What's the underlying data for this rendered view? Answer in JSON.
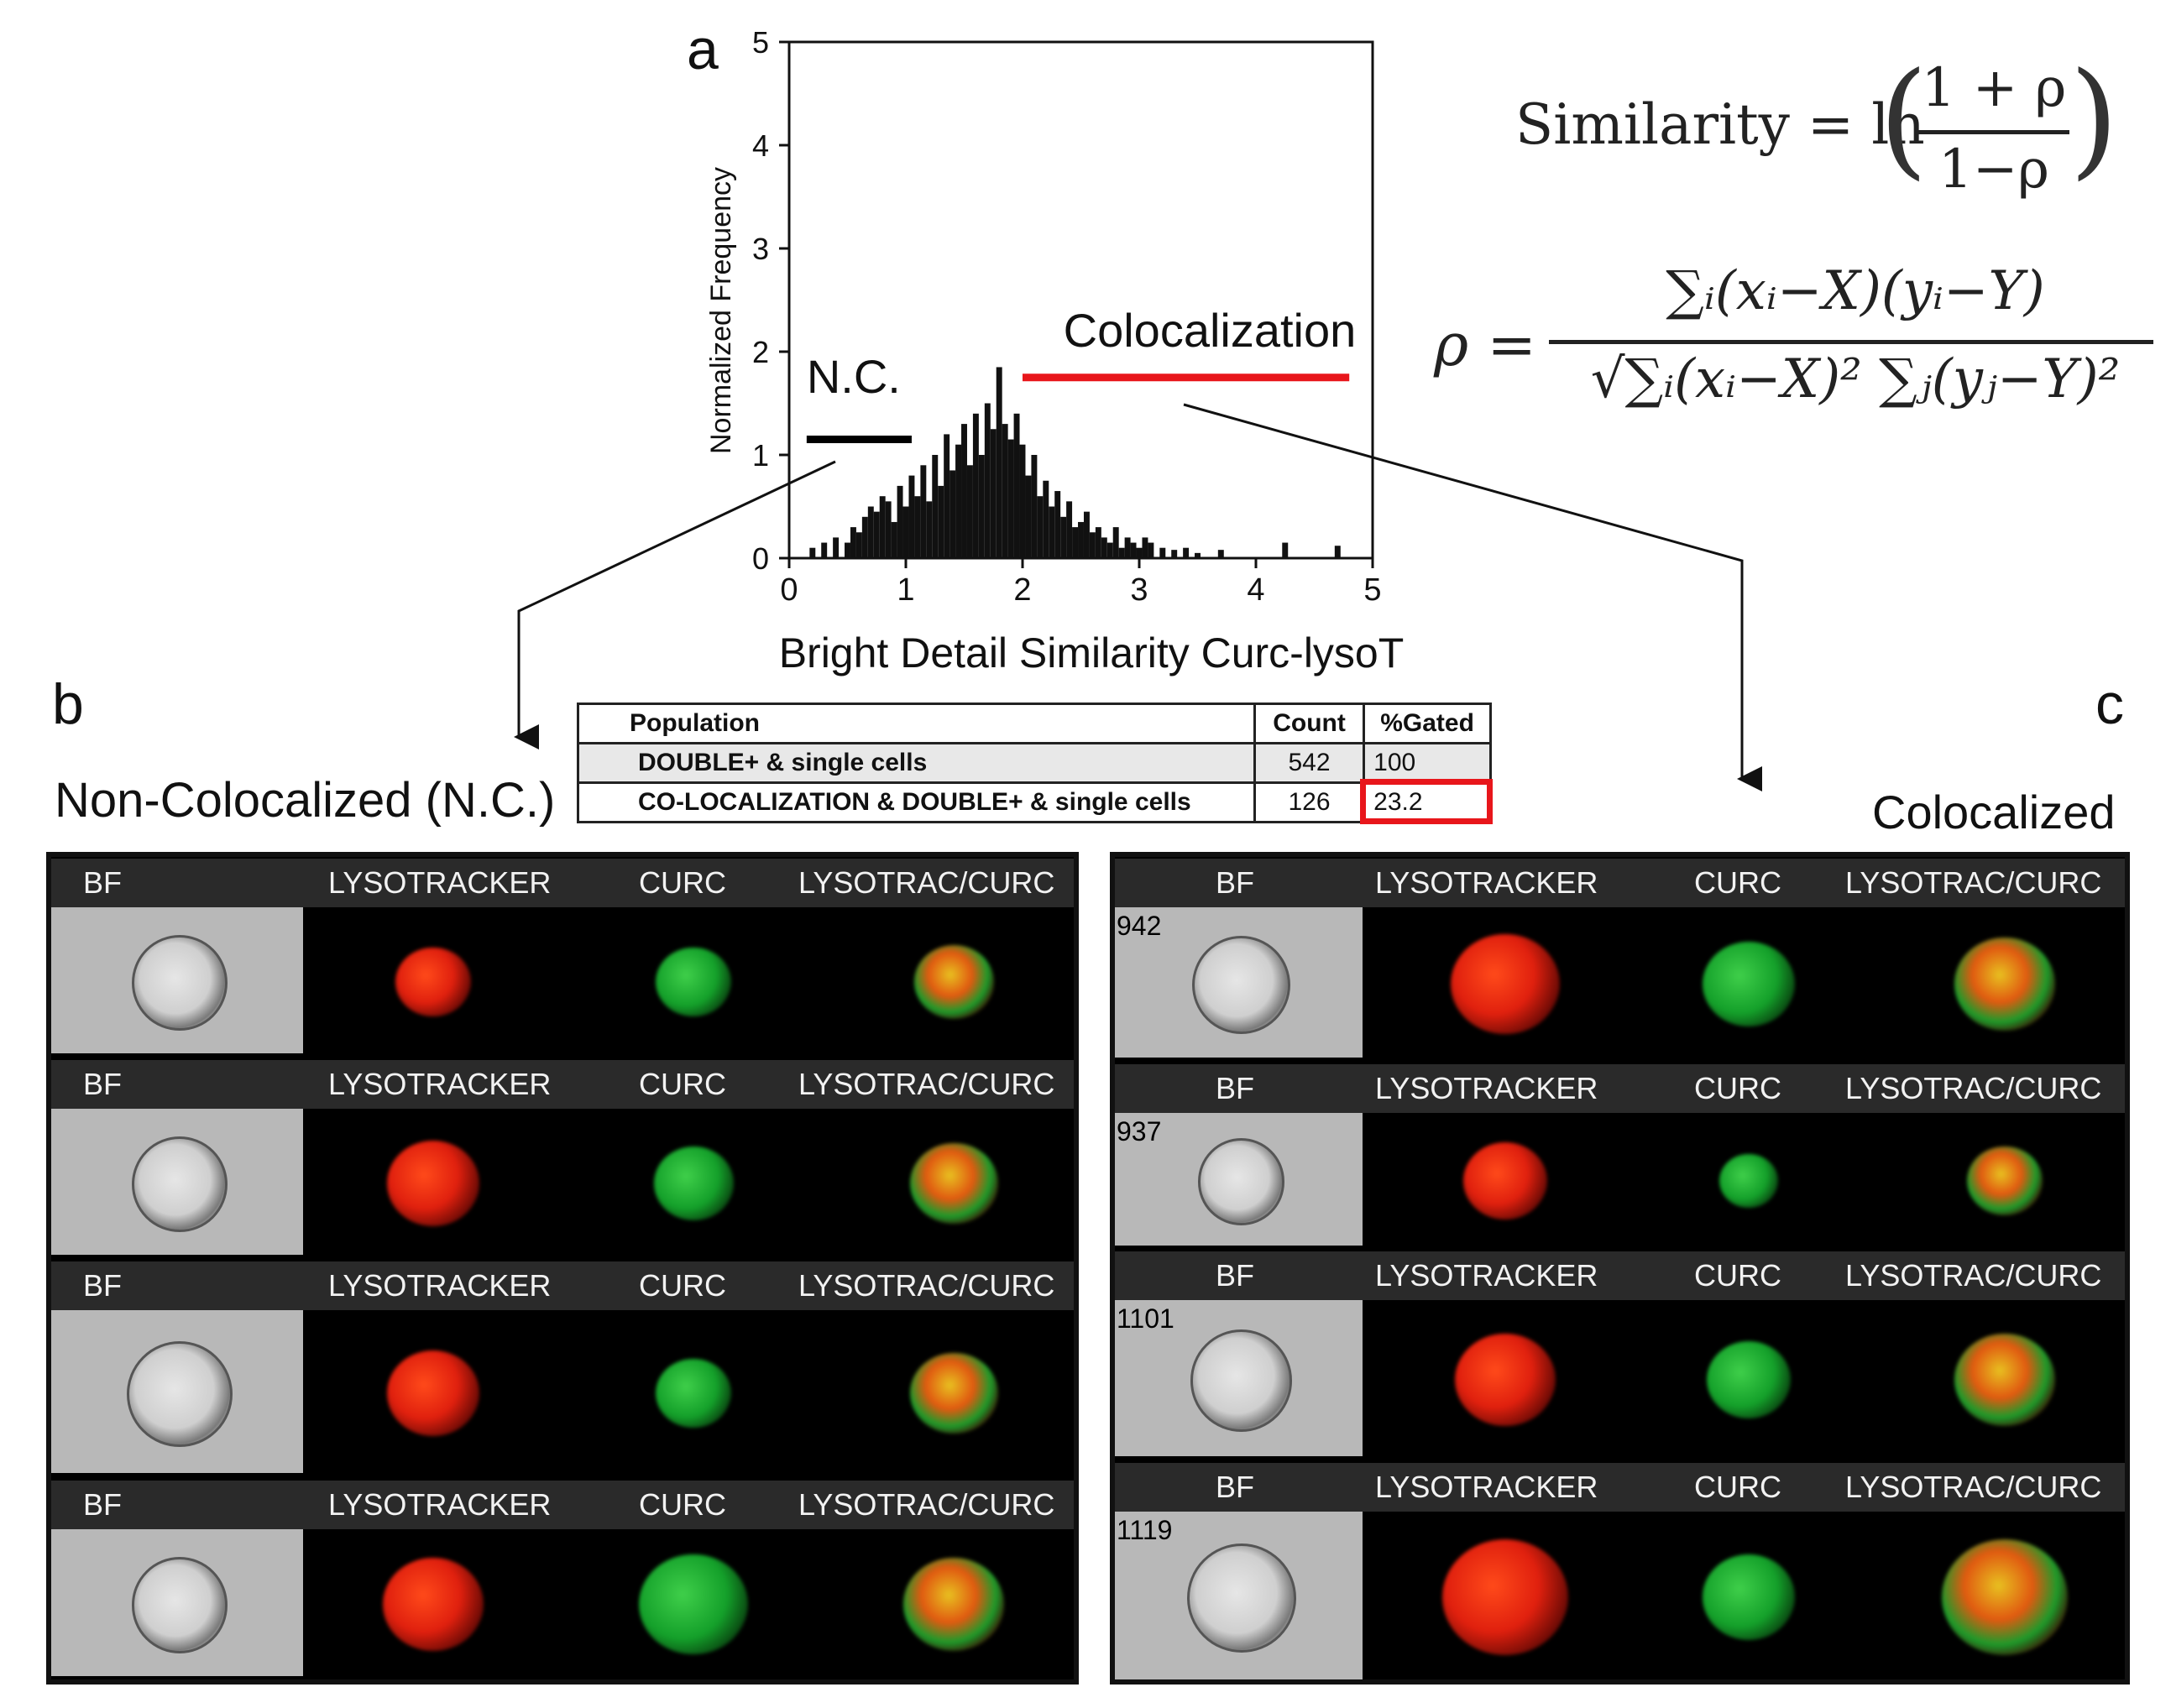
{
  "panels": {
    "a": "a",
    "b": "b",
    "c": "c"
  },
  "chart_data": {
    "type": "histogram",
    "xlabel": "Bright Detail Similarity Curc-lysoT",
    "ylabel": "Normalized Frequency",
    "xlim": [
      0,
      5
    ],
    "ylim": [
      0,
      5
    ],
    "xticks": [
      "0",
      "1",
      "2",
      "3",
      "4",
      "5"
    ],
    "yticks": [
      "0",
      "1",
      "2",
      "3",
      "4",
      "5"
    ],
    "x": [
      0.2,
      0.3,
      0.4,
      0.5,
      0.55,
      0.6,
      0.65,
      0.7,
      0.75,
      0.8,
      0.85,
      0.9,
      0.95,
      1.0,
      1.05,
      1.1,
      1.15,
      1.2,
      1.25,
      1.3,
      1.35,
      1.4,
      1.45,
      1.5,
      1.55,
      1.6,
      1.65,
      1.7,
      1.75,
      1.8,
      1.85,
      1.9,
      1.95,
      2.0,
      2.05,
      2.1,
      2.15,
      2.2,
      2.25,
      2.3,
      2.35,
      2.4,
      2.45,
      2.5,
      2.55,
      2.6,
      2.65,
      2.7,
      2.75,
      2.8,
      2.85,
      2.9,
      2.95,
      3.0,
      3.05,
      3.1,
      3.2,
      3.3,
      3.4,
      3.5,
      3.7,
      4.25,
      4.7
    ],
    "values": [
      0.1,
      0.15,
      0.2,
      0.15,
      0.3,
      0.25,
      0.4,
      0.5,
      0.45,
      0.6,
      0.55,
      0.35,
      0.7,
      0.5,
      0.8,
      0.6,
      0.9,
      0.55,
      1.0,
      0.7,
      1.2,
      0.85,
      1.1,
      1.3,
      0.9,
      1.4,
      1.0,
      1.5,
      1.25,
      1.85,
      1.3,
      1.15,
      1.4,
      1.1,
      0.8,
      1.0,
      0.6,
      0.75,
      0.5,
      0.65,
      0.4,
      0.55,
      0.3,
      0.35,
      0.45,
      0.25,
      0.3,
      0.2,
      0.15,
      0.3,
      0.1,
      0.2,
      0.15,
      0.1,
      0.2,
      0.15,
      0.1,
      0.08,
      0.1,
      0.05,
      0.08,
      0.15,
      0.12
    ],
    "annotations": {
      "nc_label": "N.C.",
      "nc_range": [
        0.15,
        1.05
      ],
      "coloc_label": "Colocalization",
      "coloc_range": [
        2.0,
        4.8
      ]
    }
  },
  "formulas": {
    "sim_lhs": "Similarity = ln",
    "sim_num": "1 + ρ",
    "sim_den": "1−ρ",
    "rho_lhs": "ρ =",
    "rho_num": "∑ᵢ(xᵢ−X)(yᵢ−Y)",
    "rho_den": "√∑ᵢ(xᵢ−X)² ∑ⱼ(yⱼ−Y)²"
  },
  "table": {
    "headers": [
      "Population",
      "Count",
      "%Gated"
    ],
    "rows": [
      [
        "DOUBLE+ & single cells",
        "542",
        "100"
      ],
      [
        "CO-LOCALIZATION & DOUBLE+ & single cells",
        "126",
        "23.2"
      ]
    ]
  },
  "titles": {
    "non_coloc": "Non-Colocalized (N.C.)",
    "coloc": "Colocalized"
  },
  "channels": [
    "BF",
    "LYSOTRACKER",
    "CURC",
    "LYSOTRAC/CURC"
  ],
  "right_cell_ids": [
    "942",
    "937",
    "1101",
    "1119"
  ],
  "colors": {
    "red_marker": "#e8161b",
    "black_marker": "#000000",
    "highlight_box": "#e8161b"
  }
}
